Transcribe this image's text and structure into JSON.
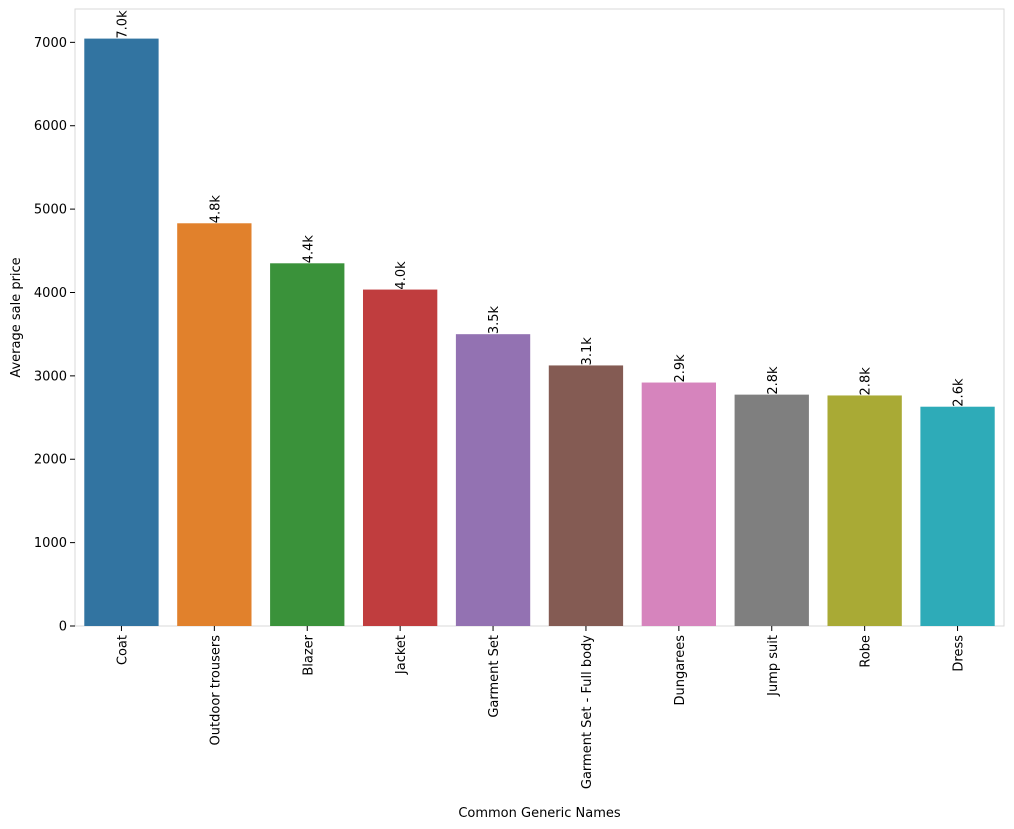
{
  "chart_data": {
    "type": "bar",
    "title": "",
    "xlabel": "Common Generic Names",
    "ylabel": "Average sale price",
    "categories": [
      "Coat",
      "Outdoor trousers",
      "Blazer",
      "Jacket",
      "Garment Set",
      "Garment Set - Full body",
      "Dungarees",
      "Jump suit",
      "Robe",
      "Dress"
    ],
    "values": [
      7045,
      4830,
      4350,
      4035,
      3500,
      3125,
      2920,
      2775,
      2765,
      2630
    ],
    "data_labels": [
      "7.0k",
      "4.8k",
      "4.4k",
      "4.0k",
      "3.5k",
      "3.1k",
      "2.9k",
      "2.8k",
      "2.8k",
      "2.6k"
    ],
    "colors": [
      "#3274a1",
      "#e1812c",
      "#3a923a",
      "#c03d3e",
      "#9372b2",
      "#845b53",
      "#d684bd",
      "#7f7f7f",
      "#a9aa35",
      "#2eabb8"
    ],
    "ylim": [
      0,
      7400
    ],
    "yticks": [
      0,
      1000,
      2000,
      3000,
      4000,
      5000,
      6000,
      7000
    ],
    "grid": false,
    "legend": "none"
  }
}
